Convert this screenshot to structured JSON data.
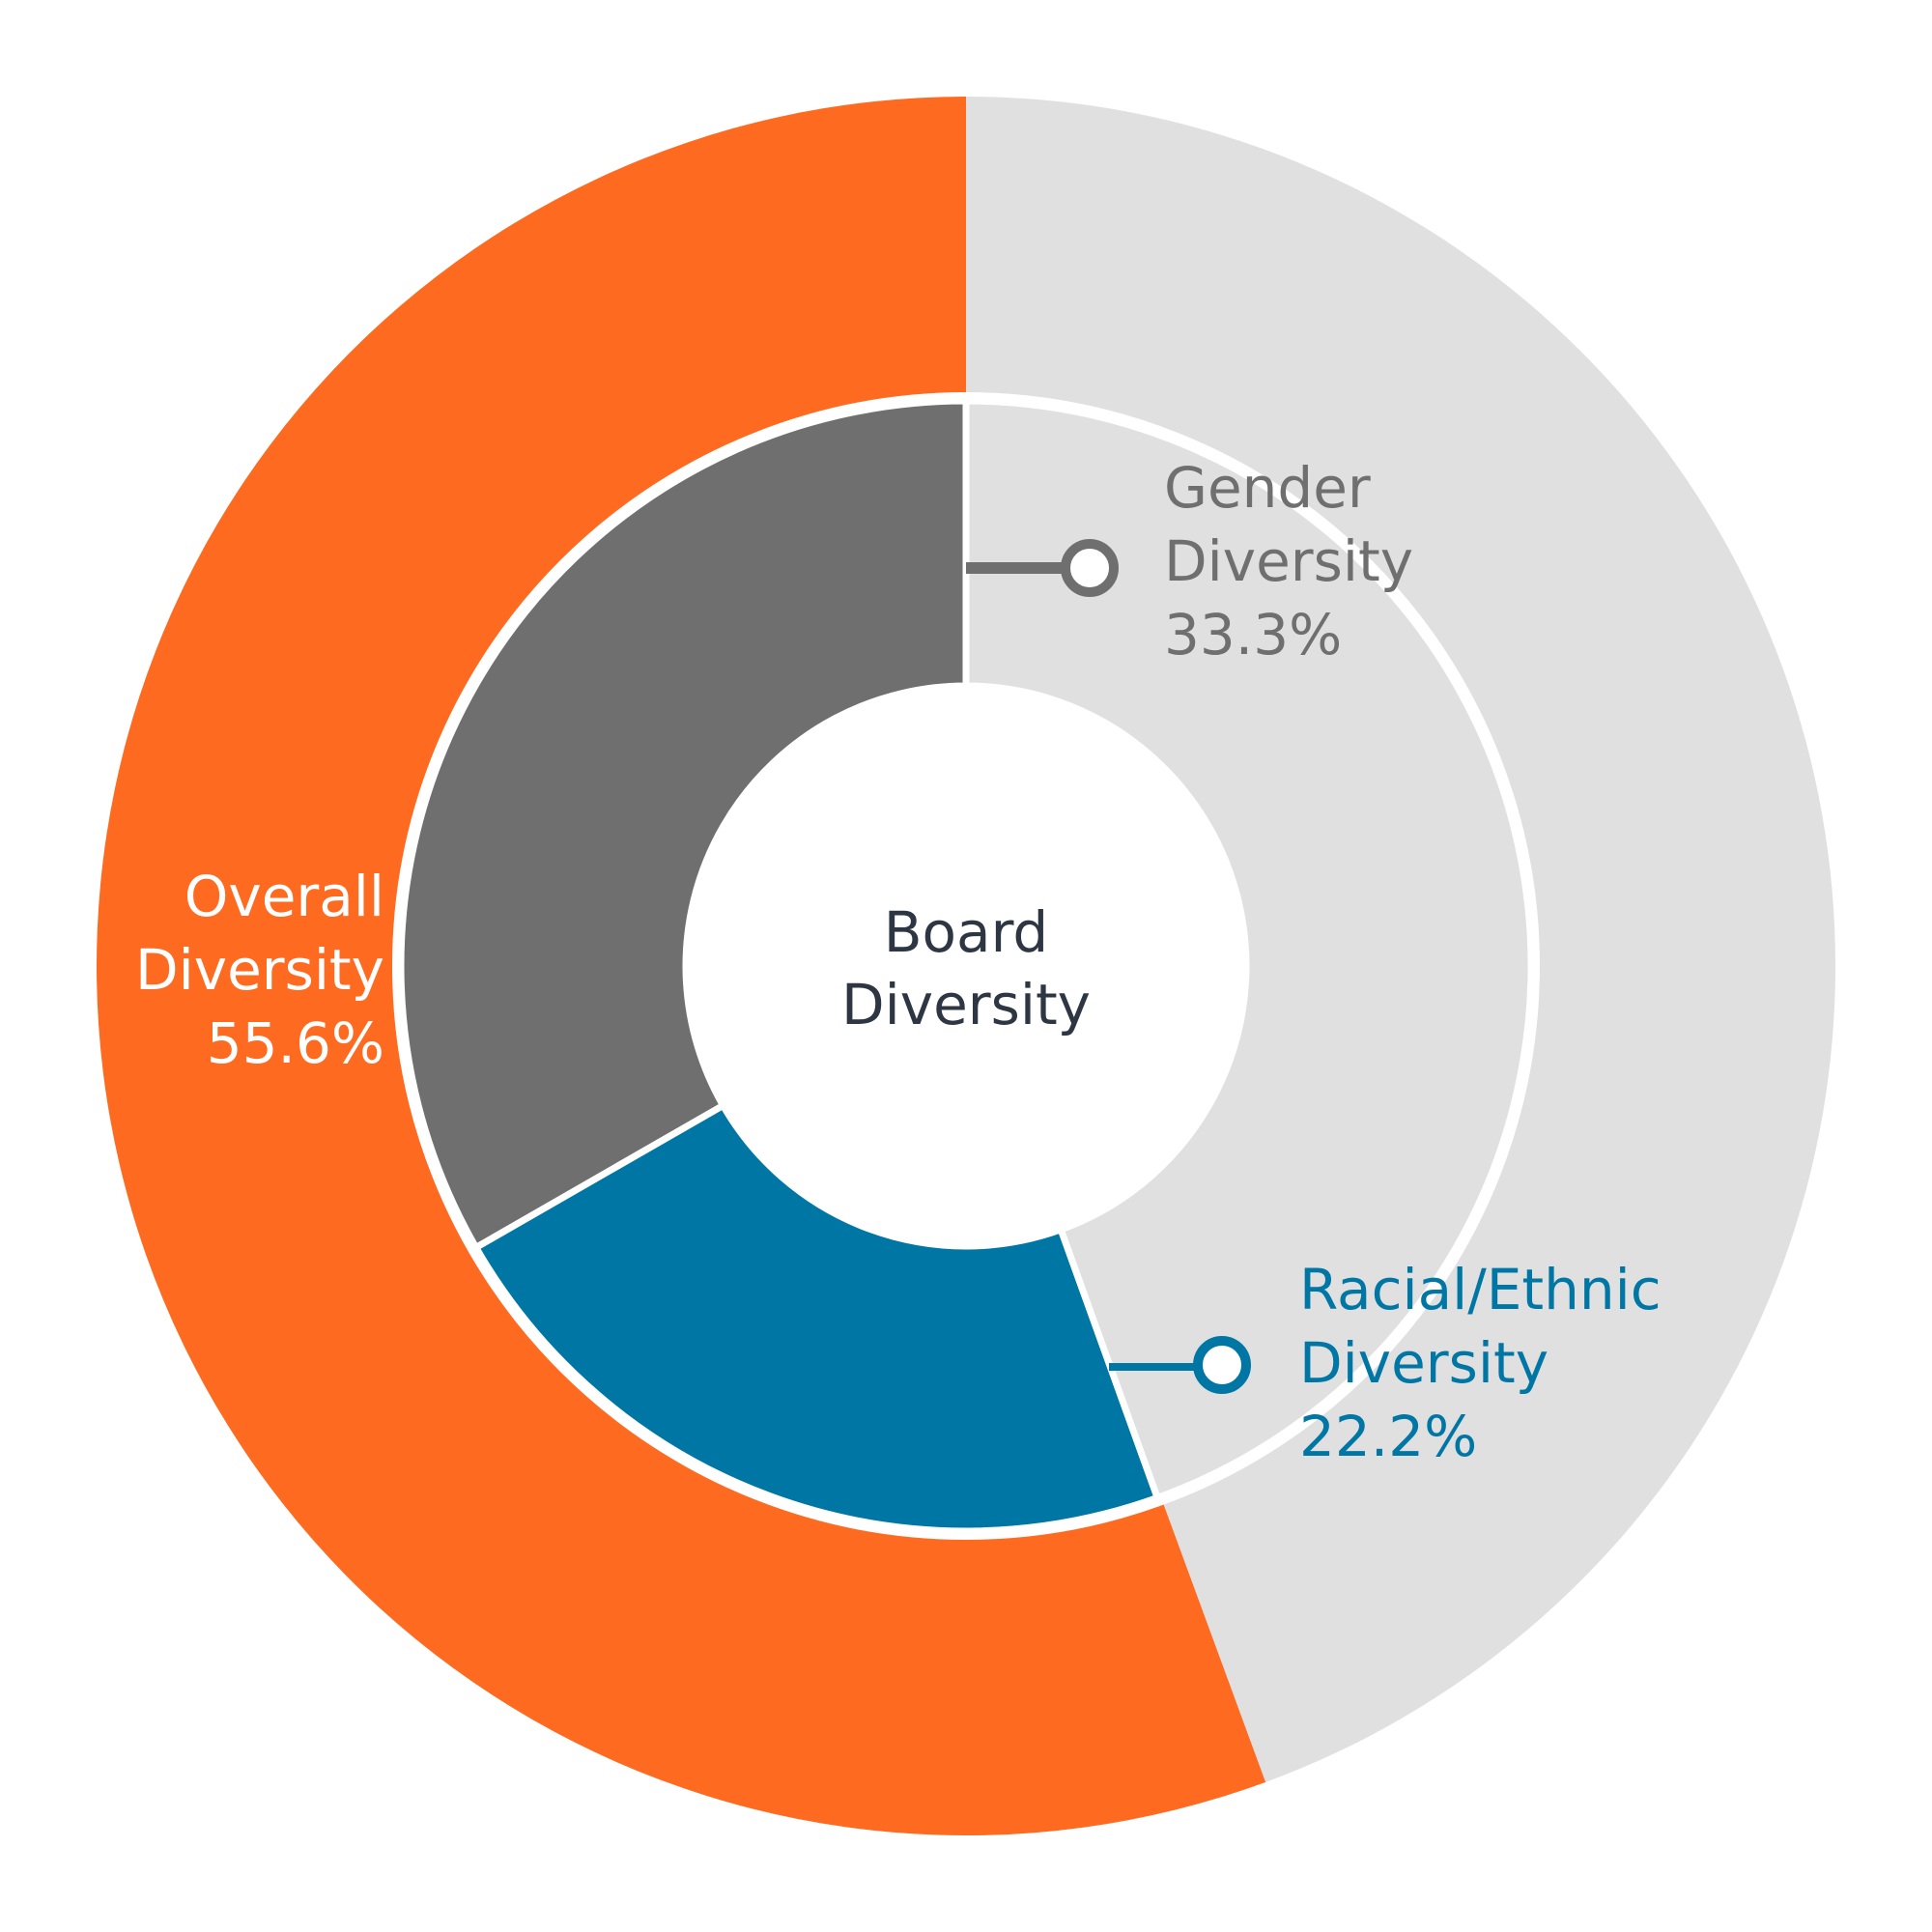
{
  "chart_data": {
    "type": "donut",
    "title": "Board Diversity",
    "title_lines": [
      "Board",
      "Diversity"
    ],
    "rings": [
      {
        "ring": "outer",
        "slices": [
          {
            "name": "Overall Diversity",
            "value": 55.6,
            "value_label": "55.6%",
            "label_lines": [
              "Overall",
              "Diversity"
            ],
            "color": "#fd6a20",
            "text_color": "#ffffff"
          },
          {
            "name": "Remainder",
            "value": 44.4,
            "color": "#e0e0e0"
          }
        ]
      },
      {
        "ring": "inner",
        "slices": [
          {
            "name": "Gender Diversity",
            "value": 33.3,
            "value_label": "33.3%",
            "label_lines": [
              "Gender",
              "Diversity"
            ],
            "color": "#6f6f6f",
            "text_color": "#6f6f6f"
          },
          {
            "name": "Racial/Ethnic Diversity",
            "value": 22.2,
            "value_label": "22.2%",
            "label_lines": [
              "Racial/Ethnic",
              "Diversity"
            ],
            "color": "#0076a5",
            "text_color": "#0076a5"
          },
          {
            "name": "Remainder",
            "value": 44.5,
            "color": "#e0e0e0"
          }
        ]
      }
    ],
    "start": "12 o'clock",
    "direction": "counter-clockwise"
  }
}
